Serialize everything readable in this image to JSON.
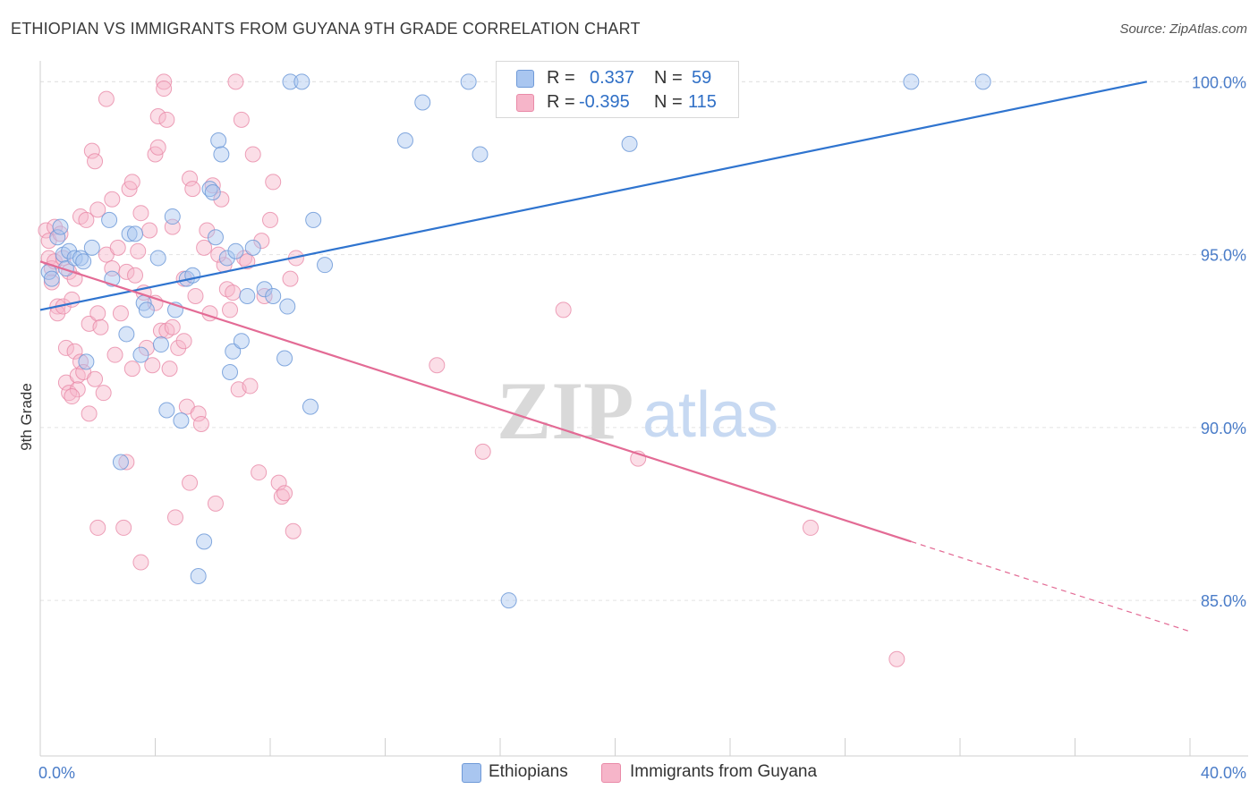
{
  "header": {
    "title": "ETHIOPIAN VS IMMIGRANTS FROM GUYANA 9TH GRADE CORRELATION CHART",
    "source": "Source: ZipAtlas.com"
  },
  "watermark": {
    "zip": "ZIP",
    "atlas": "atlas"
  },
  "legend": {
    "rows": [
      {
        "r_label": "R =",
        "r_value": "0.337",
        "n_label": "N =",
        "n_value": "59",
        "color": "#a9c6f0"
      },
      {
        "r_label": "R =",
        "r_value": "-0.395",
        "n_label": "N =",
        "n_value": "115",
        "color": "#f6b5c9"
      }
    ]
  },
  "bottom_legend": {
    "series1": "Ethiopians",
    "series2": "Immigrants from Guyana"
  },
  "colors": {
    "blue_fill": "#a9c6f0",
    "blue_stroke": "#6f9ad8",
    "blue_line": "#2f74cf",
    "pink_fill": "#f6b5c9",
    "pink_stroke": "#e98aa8",
    "pink_line": "#e36b95",
    "axis_text": "#4a7cc8",
    "grid": "#e3e3e3"
  },
  "chart_data": {
    "type": "scatter",
    "title": "ETHIOPIAN VS IMMIGRANTS FROM GUYANA 9TH GRADE CORRELATION CHART",
    "xlabel": "",
    "ylabel": "9th Grade",
    "xlim": [
      0,
      40
    ],
    "ylim": [
      80.5,
      100.5
    ],
    "x_tick_labels": [
      "0.0%",
      "40.0%"
    ],
    "y_ticks": [
      85,
      90,
      95,
      100
    ],
    "y_tick_labels": [
      "85.0%",
      "90.0%",
      "95.0%",
      "100.0%"
    ],
    "grid": true,
    "legend_position": "top-center",
    "series": [
      {
        "name": "Ethiopians",
        "color": "#a9c6f0",
        "trend": {
          "x": [
            0,
            38.5
          ],
          "y": [
            93.4,
            100.0
          ],
          "dashed_from": null
        },
        "points": [
          [
            0.3,
            94.5
          ],
          [
            0.4,
            94.3
          ],
          [
            0.6,
            95.5
          ],
          [
            0.7,
            95.8
          ],
          [
            0.8,
            95.0
          ],
          [
            0.9,
            94.6
          ],
          [
            1.0,
            95.1
          ],
          [
            1.2,
            94.9
          ],
          [
            1.4,
            94.9
          ],
          [
            1.5,
            94.8
          ],
          [
            1.6,
            91.9
          ],
          [
            1.8,
            95.2
          ],
          [
            2.4,
            96.0
          ],
          [
            2.5,
            94.3
          ],
          [
            2.8,
            89.0
          ],
          [
            3.0,
            92.7
          ],
          [
            3.1,
            95.6
          ],
          [
            3.3,
            95.6
          ],
          [
            3.5,
            92.1
          ],
          [
            3.6,
            93.6
          ],
          [
            3.7,
            93.4
          ],
          [
            4.1,
            94.9
          ],
          [
            4.2,
            92.4
          ],
          [
            4.4,
            90.5
          ],
          [
            4.6,
            96.1
          ],
          [
            4.7,
            93.4
          ],
          [
            4.9,
            90.2
          ],
          [
            5.1,
            94.3
          ],
          [
            5.3,
            94.4
          ],
          [
            5.5,
            85.7
          ],
          [
            5.7,
            86.7
          ],
          [
            5.9,
            96.9
          ],
          [
            6.0,
            96.8
          ],
          [
            6.1,
            95.5
          ],
          [
            6.2,
            98.3
          ],
          [
            6.3,
            97.9
          ],
          [
            6.5,
            94.9
          ],
          [
            6.6,
            91.6
          ],
          [
            6.7,
            92.2
          ],
          [
            6.8,
            95.1
          ],
          [
            7.0,
            92.5
          ],
          [
            7.2,
            93.8
          ],
          [
            7.4,
            95.2
          ],
          [
            7.8,
            94.0
          ],
          [
            8.1,
            93.8
          ],
          [
            8.5,
            92.0
          ],
          [
            8.6,
            93.5
          ],
          [
            8.7,
            100.0
          ],
          [
            9.1,
            100.0
          ],
          [
            9.4,
            90.6
          ],
          [
            9.5,
            96.0
          ],
          [
            9.9,
            94.7
          ],
          [
            12.7,
            98.3
          ],
          [
            13.3,
            99.4
          ],
          [
            14.9,
            100.0
          ],
          [
            15.3,
            97.9
          ],
          [
            16.3,
            85.0
          ],
          [
            20.5,
            98.2
          ],
          [
            30.3,
            100.0
          ],
          [
            32.8,
            100.0
          ]
        ]
      },
      {
        "name": "Immigrants from Guyana",
        "color": "#f6b5c9",
        "trend": {
          "x": [
            0,
            30.3,
            40
          ],
          "y": [
            94.8,
            86.7,
            84.1
          ],
          "dashed_from": 30.3
        },
        "points": [
          [
            0.2,
            95.7
          ],
          [
            0.3,
            95.4
          ],
          [
            0.3,
            94.9
          ],
          [
            0.4,
            94.6
          ],
          [
            0.4,
            94.2
          ],
          [
            0.5,
            95.8
          ],
          [
            0.5,
            94.8
          ],
          [
            0.6,
            93.5
          ],
          [
            0.6,
            93.3
          ],
          [
            0.7,
            95.6
          ],
          [
            0.8,
            94.9
          ],
          [
            0.8,
            93.5
          ],
          [
            0.9,
            92.3
          ],
          [
            0.9,
            91.3
          ],
          [
            1.0,
            91.0
          ],
          [
            1.0,
            94.5
          ],
          [
            1.1,
            93.7
          ],
          [
            1.2,
            94.3
          ],
          [
            1.2,
            92.2
          ],
          [
            1.3,
            91.5
          ],
          [
            1.3,
            91.1
          ],
          [
            1.4,
            91.9
          ],
          [
            1.4,
            96.1
          ],
          [
            1.5,
            91.6
          ],
          [
            1.6,
            96.0
          ],
          [
            1.7,
            93.0
          ],
          [
            1.7,
            90.4
          ],
          [
            1.8,
            98.0
          ],
          [
            1.9,
            97.7
          ],
          [
            1.9,
            91.4
          ],
          [
            2.0,
            96.3
          ],
          [
            2.0,
            93.3
          ],
          [
            2.1,
            92.9
          ],
          [
            2.2,
            91.0
          ],
          [
            2.3,
            99.5
          ],
          [
            2.3,
            95.0
          ],
          [
            2.5,
            96.6
          ],
          [
            2.5,
            94.6
          ],
          [
            2.6,
            92.1
          ],
          [
            2.7,
            95.2
          ],
          [
            2.8,
            93.3
          ],
          [
            2.9,
            87.1
          ],
          [
            3.0,
            94.5
          ],
          [
            3.1,
            96.9
          ],
          [
            3.2,
            91.7
          ],
          [
            3.2,
            97.1
          ],
          [
            3.3,
            94.4
          ],
          [
            3.4,
            95.1
          ],
          [
            3.5,
            96.2
          ],
          [
            3.5,
            86.1
          ],
          [
            3.6,
            93.9
          ],
          [
            3.7,
            92.3
          ],
          [
            3.8,
            95.7
          ],
          [
            3.9,
            91.8
          ],
          [
            4.0,
            97.9
          ],
          [
            4.0,
            93.6
          ],
          [
            4.1,
            99.0
          ],
          [
            4.1,
            98.1
          ],
          [
            4.2,
            92.8
          ],
          [
            4.3,
            100.0
          ],
          [
            4.3,
            99.8
          ],
          [
            4.4,
            92.8
          ],
          [
            4.5,
            91.7
          ],
          [
            4.6,
            95.8
          ],
          [
            4.6,
            92.9
          ],
          [
            4.7,
            87.4
          ],
          [
            4.8,
            92.3
          ],
          [
            5.0,
            94.3
          ],
          [
            5.1,
            90.6
          ],
          [
            5.2,
            88.4
          ],
          [
            5.2,
            97.2
          ],
          [
            5.3,
            96.9
          ],
          [
            5.4,
            93.8
          ],
          [
            5.5,
            90.4
          ],
          [
            5.6,
            90.1
          ],
          [
            5.7,
            95.2
          ],
          [
            5.8,
            95.7
          ],
          [
            5.9,
            93.3
          ],
          [
            6.0,
            97.0
          ],
          [
            6.1,
            87.8
          ],
          [
            6.3,
            96.6
          ],
          [
            6.4,
            94.7
          ],
          [
            6.5,
            94.0
          ],
          [
            6.6,
            93.4
          ],
          [
            6.8,
            100.0
          ],
          [
            6.9,
            91.1
          ],
          [
            7.0,
            98.9
          ],
          [
            7.1,
            94.9
          ],
          [
            7.2,
            94.8
          ],
          [
            7.3,
            91.2
          ],
          [
            7.4,
            97.9
          ],
          [
            7.6,
            88.7
          ],
          [
            7.8,
            93.8
          ],
          [
            8.0,
            96.0
          ],
          [
            8.1,
            97.1
          ],
          [
            8.3,
            88.4
          ],
          [
            8.4,
            88.0
          ],
          [
            8.5,
            88.1
          ],
          [
            8.7,
            94.3
          ],
          [
            8.8,
            87.0
          ],
          [
            8.9,
            94.9
          ],
          [
            15.4,
            89.3
          ],
          [
            13.8,
            91.8
          ],
          [
            18.2,
            93.4
          ],
          [
            20.8,
            89.1
          ],
          [
            26.8,
            87.1
          ],
          [
            29.8,
            83.3
          ],
          [
            6.2,
            95.0
          ],
          [
            5.0,
            92.5
          ],
          [
            4.4,
            98.9
          ],
          [
            3.0,
            89.0
          ],
          [
            2.0,
            87.1
          ],
          [
            1.1,
            90.9
          ],
          [
            7.7,
            95.4
          ],
          [
            6.7,
            93.9
          ]
        ]
      }
    ]
  }
}
